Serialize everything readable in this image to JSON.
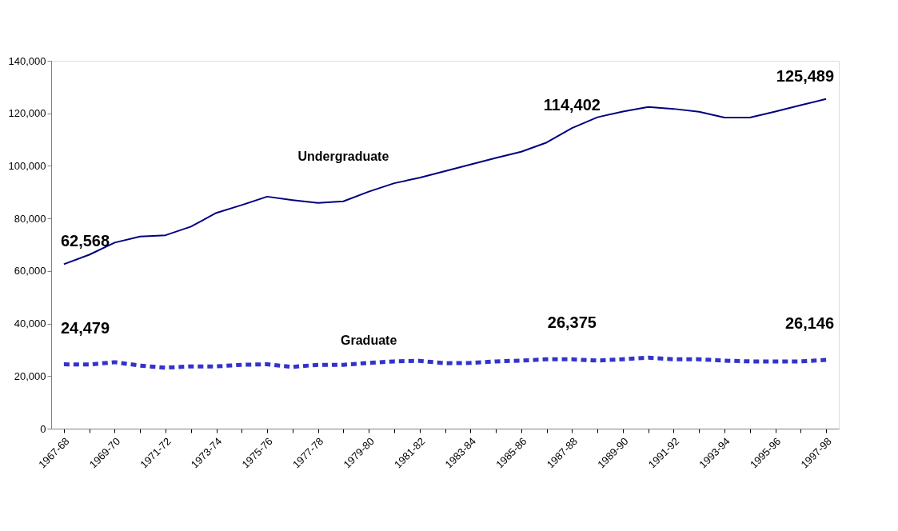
{
  "chart_data": {
    "type": "line",
    "categories": [
      "1967-68",
      null,
      "1969-70",
      null,
      "1971-72",
      null,
      "1973-74",
      null,
      "1975-76",
      null,
      "1977-78",
      null,
      "1979-80",
      null,
      "1981-82",
      null,
      "1983-84",
      null,
      "1985-86",
      null,
      "1987-88",
      null,
      "1989-90",
      null,
      "1991-92",
      null,
      "1993-94",
      null,
      "1995-96",
      null,
      "1997-98"
    ],
    "series": [
      {
        "name": "Undergraduate",
        "color": "#000080",
        "line_style": "solid",
        "values": [
          62568,
          66200,
          70800,
          73100,
          73600,
          76900,
          82100,
          85100,
          88300,
          87000,
          85900,
          86500,
          90200,
          93400,
          95500,
          98000,
          100500,
          103000,
          105400,
          108900,
          114402,
          118500,
          120700,
          122400,
          121700,
          120600,
          118400,
          118400,
          120700,
          123100,
          125489
        ],
        "value_labels": [
          "62,568",
          null,
          null,
          null,
          null,
          null,
          null,
          null,
          null,
          null,
          null,
          null,
          null,
          null,
          null,
          null,
          null,
          null,
          null,
          null,
          "114,402",
          null,
          null,
          null,
          null,
          null,
          null,
          null,
          null,
          null,
          "125,489"
        ]
      },
      {
        "name": "Graduate",
        "color": "#3333cc",
        "line_style": "dotted",
        "values": [
          24479,
          24400,
          25300,
          24000,
          23200,
          23700,
          23700,
          24300,
          24500,
          23500,
          24300,
          24300,
          25000,
          25600,
          25800,
          24900,
          25000,
          25600,
          25900,
          26400,
          26375,
          25900,
          26400,
          27000,
          26400,
          26400,
          25900,
          25600,
          25600,
          25600,
          26146
        ],
        "value_labels": [
          "24,479",
          null,
          null,
          null,
          null,
          null,
          null,
          null,
          null,
          null,
          null,
          null,
          null,
          null,
          null,
          null,
          null,
          null,
          null,
          null,
          "26,375",
          null,
          null,
          null,
          null,
          null,
          null,
          null,
          null,
          null,
          "26,146"
        ]
      }
    ],
    "ylim": [
      0,
      140000
    ],
    "yticks": [
      0,
      {
        "value": 20000,
        "label": "20,000"
      },
      {
        "value": 40000,
        "label": "40,000"
      },
      {
        "value": 60000,
        "label": "60,000"
      },
      {
        "value": 80000,
        "label": "80,000"
      },
      {
        "value": 100000,
        "label": "100,000"
      },
      {
        "value": 120000,
        "label": "120,000"
      },
      {
        "value": 140000,
        "label": "140,000"
      }
    ],
    "grid": false
  }
}
